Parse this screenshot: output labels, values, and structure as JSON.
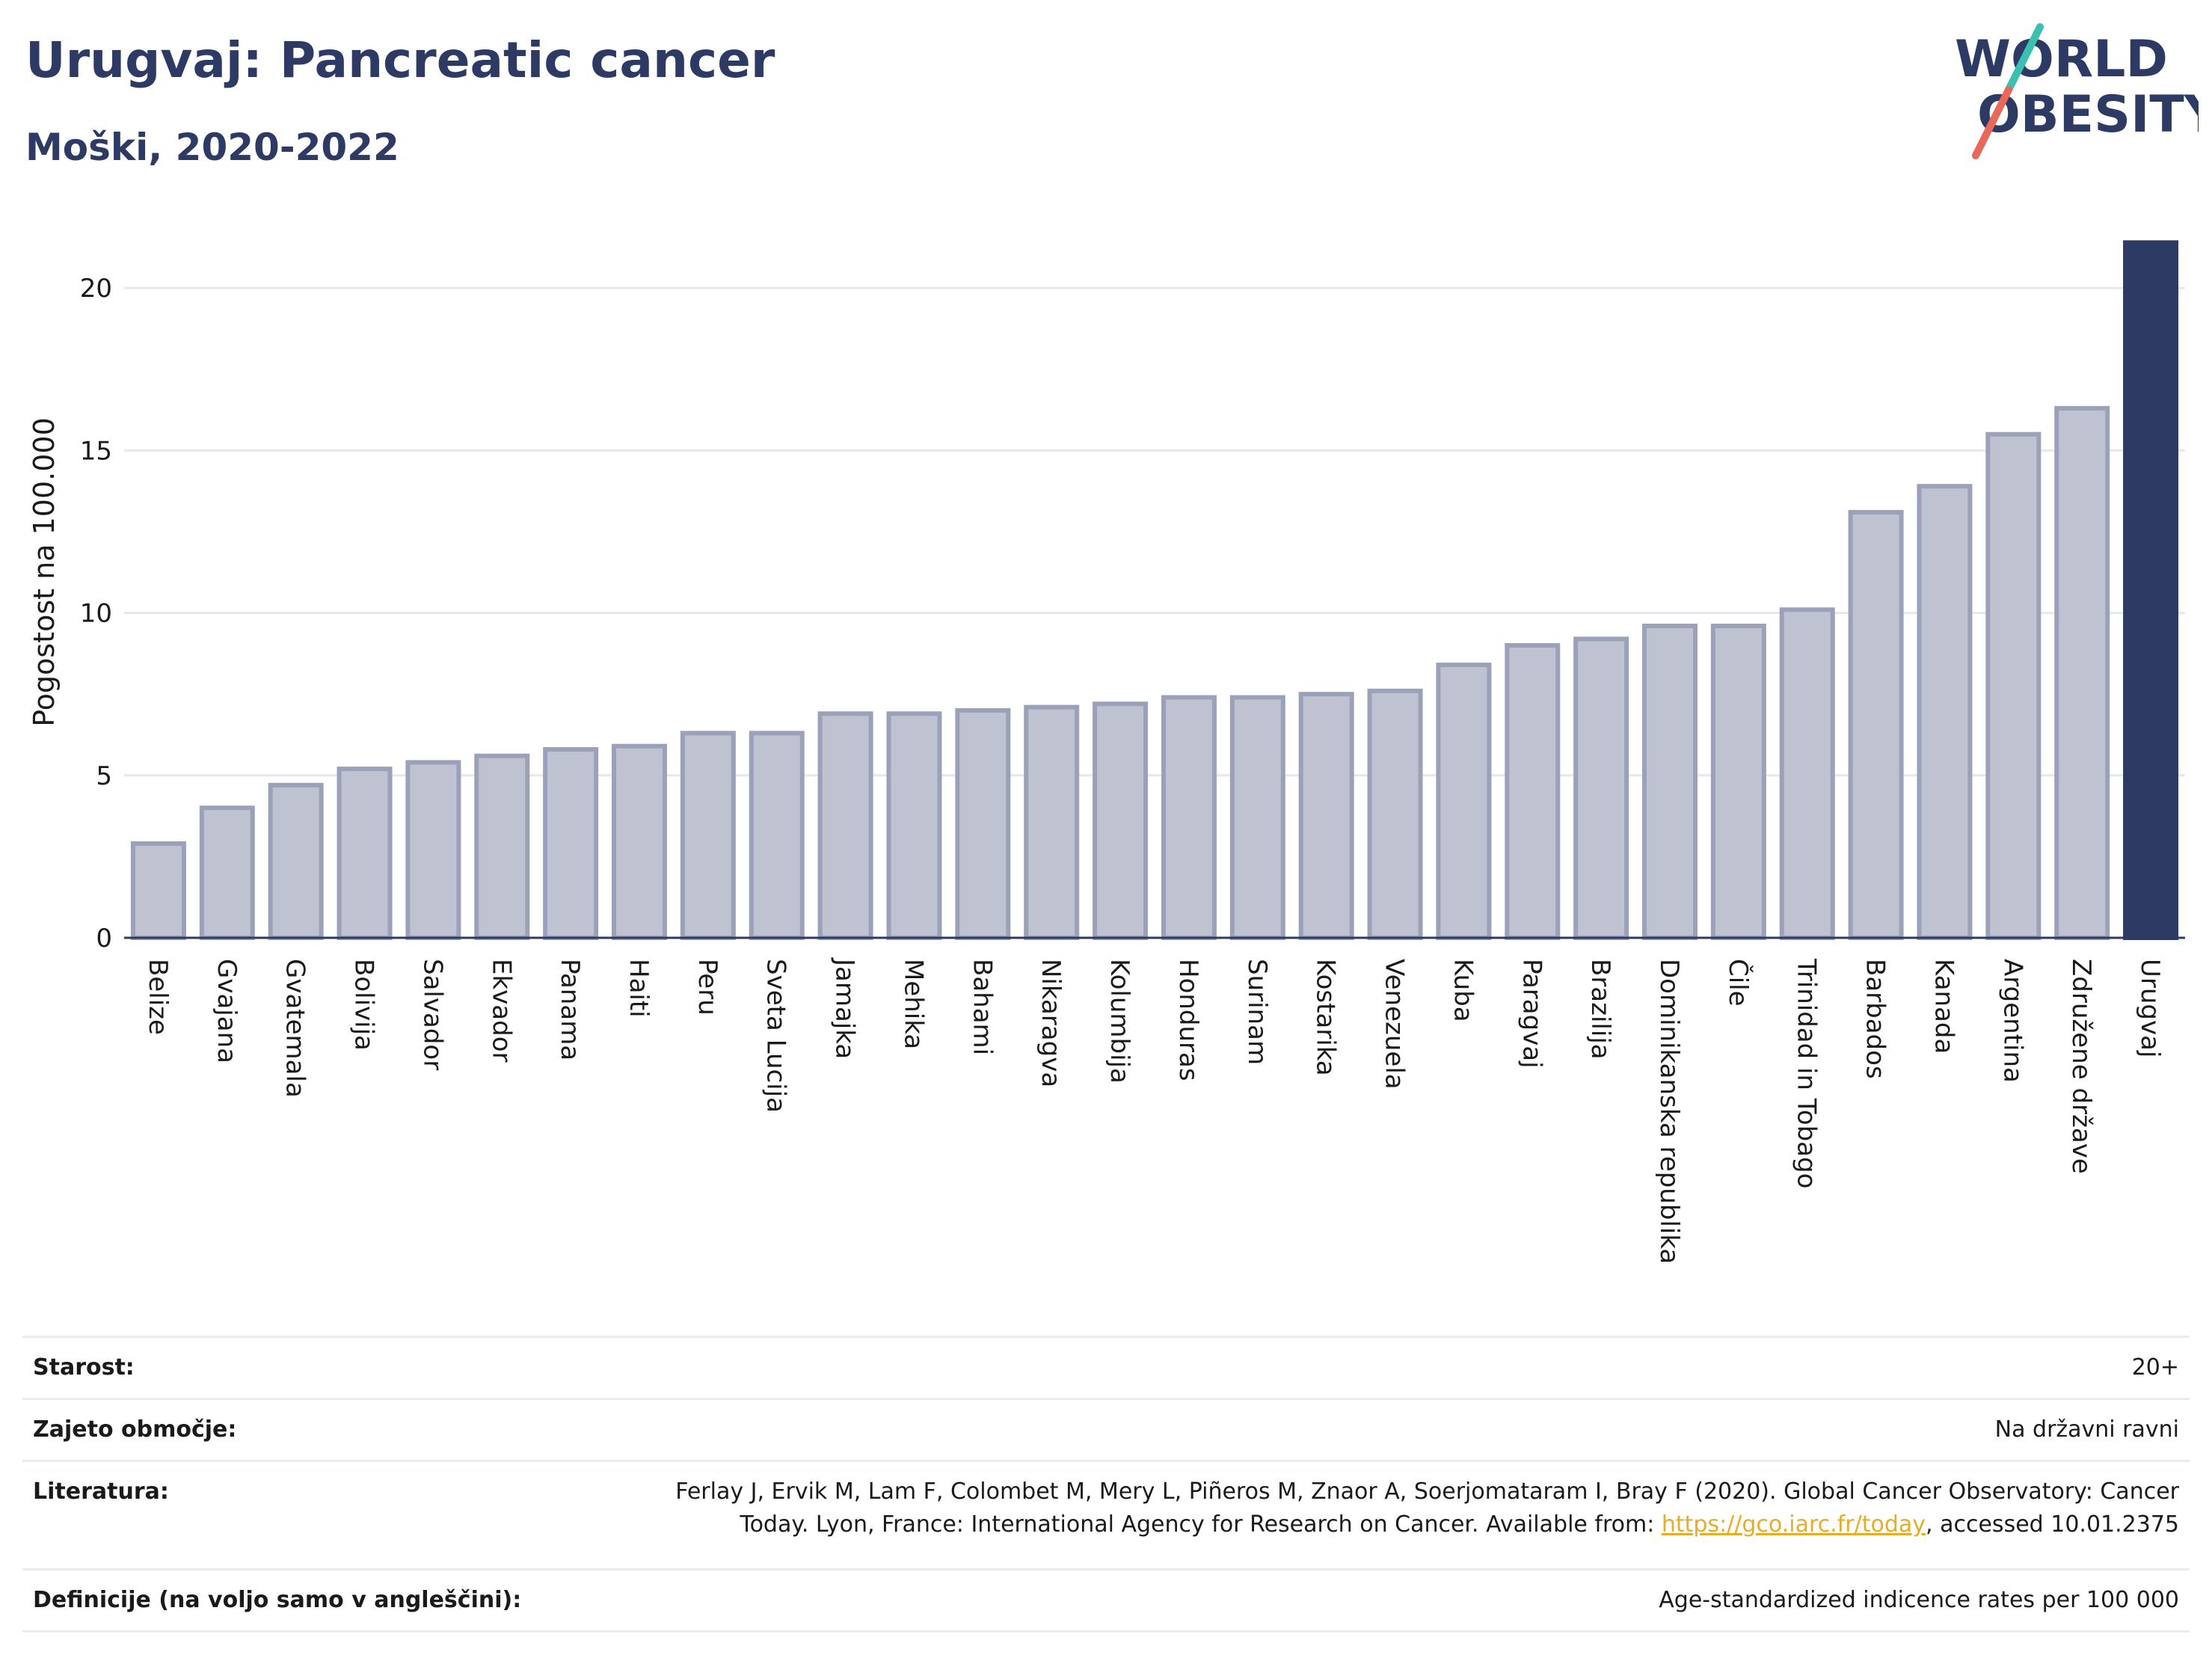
{
  "header": {
    "title": "Urugvaj: Pancreatic cancer",
    "subtitle": "Moški, 2020-2022"
  },
  "logo": {
    "line1": "WORLD",
    "line2": "OBESITY",
    "colors": {
      "text": "#2d3a64",
      "slash_top": "#3bbfb1",
      "slash_bottom": "#e8695a"
    }
  },
  "colors": {
    "bar_fill": "#bfc3d1",
    "bar_border": "#9aa1b9",
    "highlight": "#2d3a64",
    "grid": "#e6e8ef"
  },
  "chart_data": {
    "type": "bar",
    "title": "",
    "xlabel": "",
    "ylabel": "Pogostost na 100.000",
    "ylim": [
      0,
      21.5
    ],
    "yticks": [
      0,
      5,
      10,
      15,
      20
    ],
    "grid": true,
    "highlight": "Urugvaj",
    "categories": [
      "Belize",
      "Gvajana",
      "Gvatemala",
      "Bolivija",
      "Salvador",
      "Ekvador",
      "Panama",
      "Haiti",
      "Peru",
      "Sveta Lucija",
      "Jamajka",
      "Mehika",
      "Bahami",
      "Nikaragva",
      "Kolumbija",
      "Honduras",
      "Surinam",
      "Kostarika",
      "Venezuela",
      "Kuba",
      "Paragvaj",
      "Brazilija",
      "Dominikanska republika",
      "Čile",
      "Trinidad in Tobago",
      "Barbados",
      "Kanada",
      "Argentina",
      "Združene države",
      "Urugvaj"
    ],
    "values": [
      2.9,
      4.0,
      4.7,
      5.2,
      5.4,
      5.6,
      5.8,
      5.9,
      6.3,
      6.3,
      6.9,
      6.9,
      7.0,
      7.1,
      7.2,
      7.4,
      7.4,
      7.5,
      7.6,
      8.4,
      9.0,
      9.2,
      9.6,
      9.6,
      10.1,
      13.1,
      13.9,
      15.5,
      16.3,
      21.4
    ]
  },
  "meta": {
    "age_label": "Starost:",
    "age_value": "20+",
    "coverage_label": "Zajeto območje:",
    "coverage_value": "Na državni ravni",
    "reference_label": "Literatura:",
    "reference_line1": "Ferlay J, Ervik M, Lam F, Colombet M, Mery L, Piñeros M, Znaor A, Soerjomataram I, Bray F (2020). Global Cancer Observatory: Cancer",
    "reference_line2_pre": "Today. Lyon, France: International Agency for Research on Cancer. Available from: ",
    "reference_link": "https://gco.iarc.fr/today",
    "reference_line2_post": ", accessed 10.01.2375",
    "definitions_label": "Definicije (na voljo samo v angleščini):",
    "definitions_value": "Age-standardized indicence rates per 100 000"
  }
}
